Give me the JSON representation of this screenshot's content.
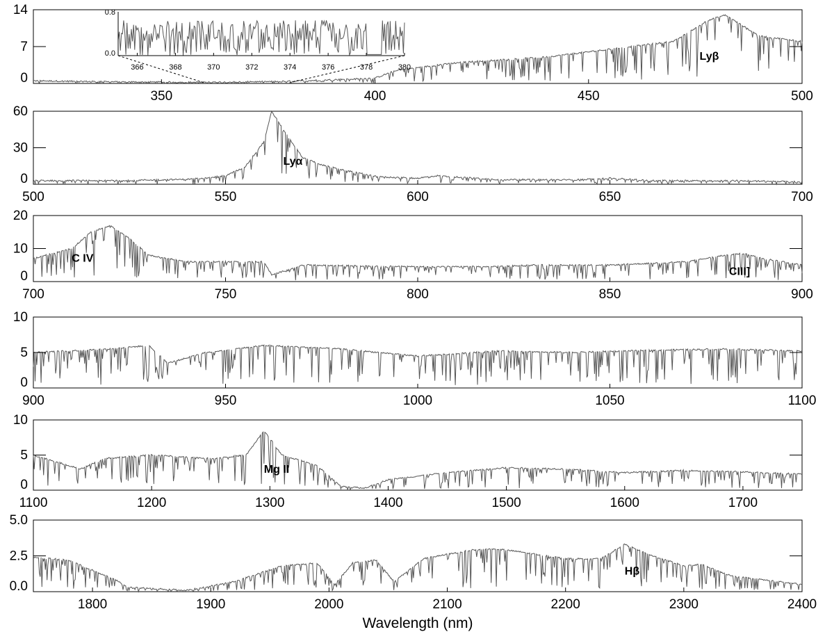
{
  "chart_data": {
    "type": "line",
    "xlabel": "Wavelength (nm)",
    "color": "#555555",
    "panels": [
      {
        "x_range": [
          320,
          500
        ],
        "y_range": [
          0,
          14
        ],
        "x_ticks": [
          350,
          400,
          450,
          500
        ],
        "y_ticks": [
          0,
          7,
          14
        ],
        "x_tick_labels": [
          "350",
          "400",
          "450",
          "500"
        ],
        "y_tick_labels": [
          "0",
          "7",
          "14"
        ],
        "series": [
          {
            "x": [
              320,
              340,
              360,
              380,
              400,
              405,
              420,
              440,
              450,
              460,
              470,
              478,
              482,
              490,
              500
            ],
            "y": [
              0.5,
              0.3,
              0.2,
              0.4,
              1.0,
              2.5,
              4,
              5,
              6,
              7,
              8,
              12,
              13,
              9,
              8
            ]
          }
        ],
        "annotations": [
          {
            "text": "Lyβ",
            "x": 476,
            "y": 4.5
          }
        ],
        "inset": {
          "x_range": [
            365,
            380
          ],
          "y_range": [
            0.0,
            0.8
          ],
          "x_ticks": [
            366,
            368,
            370,
            372,
            374,
            376,
            378,
            380
          ],
          "x_tick_labels": [
            "366",
            "368",
            "370",
            "372",
            "374",
            "376",
            "378",
            "380"
          ],
          "y_ticks": [
            0.0,
            0.8
          ],
          "y_tick_labels": [
            "0.0",
            "0.8"
          ],
          "zoom_from": [
            360,
            380
          ]
        }
      },
      {
        "x_range": [
          500,
          700
        ],
        "y_range": [
          0,
          60
        ],
        "x_ticks": [
          500,
          550,
          600,
          650,
          700
        ],
        "y_ticks": [
          0,
          30,
          60
        ],
        "x_tick_labels": [
          "500",
          "550",
          "600",
          "650",
          "700"
        ],
        "y_tick_labels": [
          "0",
          "30",
          "60"
        ],
        "series": [
          {
            "x": [
              500,
              520,
              540,
              550,
              555,
              560,
              562,
              565,
              570,
              575,
              580,
              590,
              600,
              605,
              620,
              640,
              650,
              660,
              680,
              700
            ],
            "y": [
              3,
              3,
              4,
              7,
              14,
              35,
              60,
              45,
              22,
              16,
              12,
              6,
              5,
              7,
              4,
              3.5,
              5,
              3,
              3,
              2
            ]
          }
        ],
        "annotations": [
          {
            "text": "Lyα",
            "x": 565,
            "y": 16
          }
        ]
      },
      {
        "x_range": [
          700,
          900
        ],
        "y_range": [
          0,
          20
        ],
        "x_ticks": [
          700,
          750,
          800,
          850,
          900
        ],
        "y_ticks": [
          0,
          10,
          20
        ],
        "x_tick_labels": [
          "700",
          "750",
          "800",
          "850",
          "900"
        ],
        "y_tick_labels": [
          "0",
          "10",
          "20"
        ],
        "series": [
          {
            "x": [
              700,
              710,
              715,
              720,
              725,
              730,
              740,
              760,
              762,
              770,
              800,
              820,
              830,
              850,
              870,
              880,
              885,
              890,
              900
            ],
            "y": [
              7,
              10,
              15,
              17,
              13,
              8,
              6,
              6,
              2,
              5,
              4.5,
              4.5,
              5,
              5,
              6,
              8,
              8.5,
              7,
              5
            ]
          }
        ],
        "annotations": [
          {
            "text": "C IV",
            "x": 710,
            "y": 6
          },
          {
            "text": "CIII]",
            "x": 881,
            "y": 2
          }
        ]
      },
      {
        "x_range": [
          900,
          1100
        ],
        "y_range": [
          0,
          10
        ],
        "x_ticks": [
          900,
          950,
          1000,
          1050,
          1100
        ],
        "y_ticks": [
          0,
          5,
          10
        ],
        "x_tick_labels": [
          "900",
          "950",
          "1000",
          "1050",
          "1100"
        ],
        "y_tick_labels": [
          "0",
          "5",
          "10"
        ],
        "series": [
          {
            "x": [
              900,
              920,
              930,
              935,
              945,
              960,
              980,
              990,
              1000,
              1010,
              1020,
              1040,
              1060,
              1080,
              1100
            ],
            "y": [
              5,
              5.5,
              6,
              3.5,
              5,
              6,
              5.5,
              5,
              4.5,
              4.8,
              5.2,
              5,
              5.3,
              5.5,
              5.2
            ]
          }
        ],
        "annotations": []
      },
      {
        "x_range": [
          1100,
          1750
        ],
        "y_range": [
          0,
          10
        ],
        "x_ticks": [
          1100,
          1200,
          1300,
          1400,
          1500,
          1600,
          1700
        ],
        "y_ticks": [
          0,
          5,
          10
        ],
        "x_tick_labels": [
          "1100",
          "1200",
          "1300",
          "1400",
          "1500",
          "1600",
          "1700"
        ],
        "y_tick_labels": [
          "0",
          "5",
          "10"
        ],
        "series": [
          {
            "x": [
              1100,
              1120,
              1140,
              1160,
              1200,
              1250,
              1280,
              1295,
              1310,
              1340,
              1360,
              1380,
              1400,
              1450,
              1500,
              1550,
              1600,
              1650,
              1700,
              1750
            ],
            "y": [
              5,
              4,
              3,
              4.5,
              5,
              4.5,
              5,
              8.5,
              5,
              3.5,
              0.5,
              0.3,
              1.5,
              2.5,
              3.2,
              3,
              2.5,
              2.8,
              2.6,
              2.3
            ]
          }
        ],
        "annotations": [
          {
            "text": "Mg II",
            "x": 1295,
            "y": 2.5
          }
        ]
      },
      {
        "x_range": [
          1750,
          2400
        ],
        "y_range": [
          0.0,
          5.0
        ],
        "x_ticks": [
          1800,
          1900,
          2000,
          2100,
          2200,
          2300,
          2400
        ],
        "y_ticks": [
          0.0,
          2.5,
          5.0
        ],
        "x_tick_labels": [
          "1800",
          "1900",
          "2000",
          "2100",
          "2200",
          "2300",
          "2400"
        ],
        "y_tick_labels": [
          "0.0",
          "2.5",
          "5.0"
        ],
        "series": [
          {
            "x": [
              1750,
              1780,
              1800,
              1820,
              1830,
              1880,
              1920,
              1960,
              1990,
              2005,
              2020,
              2040,
              2055,
              2080,
              2120,
              2140,
              2160,
              2200,
              2230,
              2250,
              2270,
              2300,
              2315,
              2340,
              2370,
              2400
            ],
            "y": [
              2.4,
              2.2,
              1.5,
              0.8,
              0.3,
              0.1,
              0.7,
              1.8,
              2.0,
              0.5,
              2.0,
              2.2,
              0.7,
              2.3,
              2.9,
              3.0,
              2.8,
              2.3,
              2.3,
              3.3,
              2.6,
              1.8,
              1.9,
              1.1,
              0.8,
              0.5
            ]
          }
        ],
        "annotations": [
          {
            "text": "Hβ",
            "x": 2250,
            "y": 1.2
          }
        ]
      }
    ]
  }
}
